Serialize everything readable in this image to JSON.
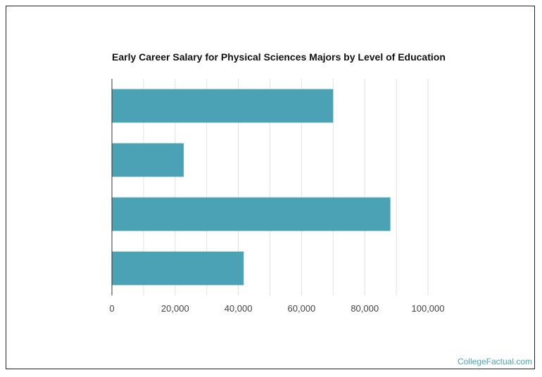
{
  "chart_data": {
    "type": "bar",
    "orientation": "horizontal",
    "title": "Early Career Salary for Physical Sciences Majors by Level of Education",
    "categories": [
      "",
      "",
      "",
      ""
    ],
    "values": [
      70000,
      22700,
      88100,
      41700
    ],
    "xlim": [
      0,
      100000
    ],
    "x_ticks": [
      0,
      20000,
      40000,
      60000,
      80000,
      100000
    ],
    "x_tick_labels": [
      "0",
      "20,000",
      "40,000",
      "60,000",
      "80,000",
      "100,000"
    ],
    "bar_color": "#4aa2b4",
    "grid": true,
    "legend": "none"
  },
  "footer": {
    "watermark": "CollegeFactual.com"
  }
}
